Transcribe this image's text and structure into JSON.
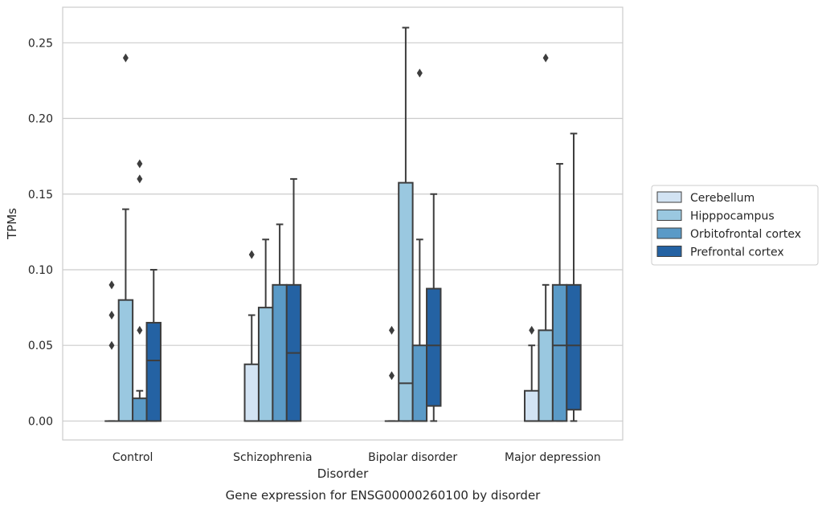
{
  "chart_data": {
    "type": "boxplot",
    "caption": "Gene expression for ENSG00000260100 by disorder",
    "xlabel": "Disorder",
    "ylabel": "TPMs",
    "ylim": [
      -0.0125,
      0.2735
    ],
    "yticks": [
      0.0,
      0.05,
      0.1,
      0.15,
      0.2,
      0.25
    ],
    "ytick_labels": [
      "0.00",
      "0.05",
      "0.10",
      "0.15",
      "0.20",
      "0.25"
    ],
    "grid": "horizontal",
    "legend_position": "right",
    "categories": [
      "Control",
      "Schizophrenia",
      "Bipolar disorder",
      "Major depression"
    ],
    "series": [
      {
        "name": "Cerebellum",
        "color": "#d2e3f3",
        "boxes": [
          {
            "whisker_low": 0.0,
            "q1": 0.0,
            "median": 0.0,
            "q3": 0.0,
            "whisker_high": 0.0,
            "outliers": [
              0.05,
              0.07,
              0.09
            ]
          },
          {
            "whisker_low": 0.0,
            "q1": 0.0,
            "median": 0.0,
            "q3": 0.0375,
            "whisker_high": 0.07,
            "outliers": [
              0.11
            ]
          },
          {
            "whisker_low": 0.0,
            "q1": 0.0,
            "median": 0.0,
            "q3": 0.0,
            "whisker_high": 0.0,
            "outliers": [
              0.03,
              0.06
            ]
          },
          {
            "whisker_low": 0.0,
            "q1": 0.0,
            "median": 0.0,
            "q3": 0.02,
            "whisker_high": 0.05,
            "outliers": [
              0.06
            ]
          }
        ]
      },
      {
        "name": "Hipppocampus",
        "color": "#9ac8e0",
        "boxes": [
          {
            "whisker_low": 0.0,
            "q1": 0.0,
            "median": 0.0,
            "q3": 0.08,
            "whisker_high": 0.14,
            "outliers": [
              0.24
            ]
          },
          {
            "whisker_low": 0.0,
            "q1": 0.0,
            "median": 0.0,
            "q3": 0.075,
            "whisker_high": 0.12,
            "outliers": []
          },
          {
            "whisker_low": 0.0,
            "q1": 0.0,
            "median": 0.025,
            "q3": 0.1575,
            "whisker_high": 0.26,
            "outliers": []
          },
          {
            "whisker_low": 0.0,
            "q1": 0.0,
            "median": 0.0,
            "q3": 0.06,
            "whisker_high": 0.09,
            "outliers": [
              0.24
            ]
          }
        ]
      },
      {
        "name": "Orbitofrontal cortex",
        "color": "#5a9ac7",
        "boxes": [
          {
            "whisker_low": 0.0,
            "q1": 0.0,
            "median": 0.0,
            "q3": 0.015,
            "whisker_high": 0.02,
            "outliers": [
              0.06,
              0.16,
              0.17
            ]
          },
          {
            "whisker_low": 0.0,
            "q1": 0.0,
            "median": 0.0,
            "q3": 0.09,
            "whisker_high": 0.13,
            "outliers": []
          },
          {
            "whisker_low": 0.0,
            "q1": 0.0,
            "median": 0.0,
            "q3": 0.05,
            "whisker_high": 0.12,
            "outliers": [
              0.23
            ]
          },
          {
            "whisker_low": 0.0,
            "q1": 0.0,
            "median": 0.05,
            "q3": 0.09,
            "whisker_high": 0.17,
            "outliers": []
          }
        ]
      },
      {
        "name": "Prefrontal cortex",
        "color": "#2462a3",
        "boxes": [
          {
            "whisker_low": 0.0,
            "q1": 0.0,
            "median": 0.04,
            "q3": 0.065,
            "whisker_high": 0.1,
            "outliers": []
          },
          {
            "whisker_low": 0.0,
            "q1": 0.0,
            "median": 0.045,
            "q3": 0.09,
            "whisker_high": 0.16,
            "outliers": []
          },
          {
            "whisker_low": 0.0,
            "q1": 0.01,
            "median": 0.05,
            "q3": 0.0875,
            "whisker_high": 0.15,
            "outliers": []
          },
          {
            "whisker_low": 0.0,
            "q1": 0.0075,
            "median": 0.05,
            "q3": 0.09,
            "whisker_high": 0.19,
            "outliers": []
          }
        ]
      }
    ]
  }
}
